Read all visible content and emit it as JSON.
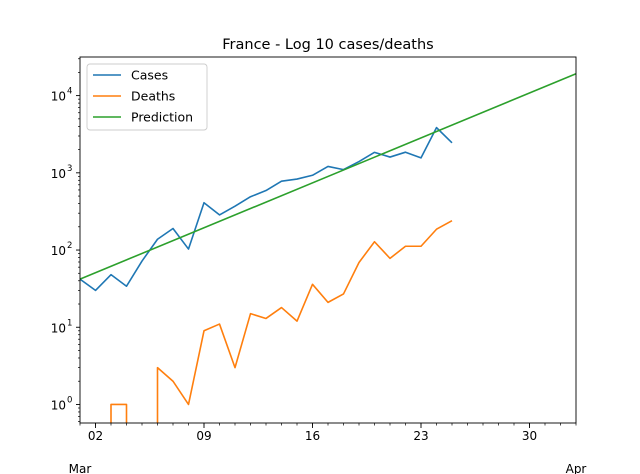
{
  "chart_data": {
    "type": "line",
    "title": "France - Log 10 cases/deaths",
    "yscale": "log10",
    "ylim_log10": [
      -0.24,
      4.5
    ],
    "xlim_day": [
      1,
      33
    ],
    "y_ticks": [
      {
        "base": "10",
        "exp": "0",
        "value": 1
      },
      {
        "base": "10",
        "exp": "1",
        "value": 10
      },
      {
        "base": "10",
        "exp": "2",
        "value": 100
      },
      {
        "base": "10",
        "exp": "3",
        "value": 1000
      },
      {
        "base": "10",
        "exp": "4",
        "value": 10000
      }
    ],
    "x_ticks": [
      {
        "label": "02",
        "day": 2
      },
      {
        "label": "09",
        "day": 9
      },
      {
        "label": "16",
        "day": 16
      },
      {
        "label": "23",
        "day": 23
      },
      {
        "label": "30",
        "day": 30
      }
    ],
    "x_month_labels": [
      {
        "label": "Mar",
        "day": 1
      },
      {
        "label": "Apr",
        "day": 33
      }
    ],
    "legend_position": "upper-left",
    "series": [
      {
        "name": "Cases",
        "color": "#1f77b4",
        "points": [
          [
            1,
            42
          ],
          [
            2,
            30
          ],
          [
            3,
            48
          ],
          [
            4,
            34
          ],
          [
            5,
            72
          ],
          [
            6,
            138
          ],
          [
            7,
            190
          ],
          [
            8,
            103
          ],
          [
            9,
            410
          ],
          [
            10,
            285
          ],
          [
            11,
            370
          ],
          [
            12,
            490
          ],
          [
            13,
            590
          ],
          [
            14,
            780
          ],
          [
            15,
            830
          ],
          [
            16,
            930
          ],
          [
            17,
            1210
          ],
          [
            18,
            1100
          ],
          [
            19,
            1400
          ],
          [
            20,
            1840
          ],
          [
            21,
            1600
          ],
          [
            22,
            1850
          ],
          [
            23,
            1560
          ],
          [
            24,
            3850
          ],
          [
            25,
            2450
          ]
        ]
      },
      {
        "name": "Deaths",
        "color": "#ff7f0e",
        "note": "zero-death days drop below the log axis",
        "points": [
          [
            3,
            0
          ],
          [
            3,
            1
          ],
          [
            4,
            1
          ],
          [
            4,
            0
          ],
          [
            6,
            0
          ],
          [
            6,
            3
          ],
          [
            7,
            2
          ],
          [
            8,
            1
          ],
          [
            9,
            9
          ],
          [
            10,
            11
          ],
          [
            11,
            3
          ],
          [
            12,
            15
          ],
          [
            13,
            13
          ],
          [
            14,
            18
          ],
          [
            15,
            12
          ],
          [
            16,
            36
          ],
          [
            17,
            21
          ],
          [
            18,
            27
          ],
          [
            19,
            69
          ],
          [
            20,
            128
          ],
          [
            21,
            78
          ],
          [
            22,
            112
          ],
          [
            23,
            112
          ],
          [
            24,
            186
          ],
          [
            25,
            240
          ]
        ]
      },
      {
        "name": "Prediction",
        "color": "#2ca02c",
        "points": [
          [
            1,
            42
          ],
          [
            33,
            19200
          ]
        ]
      }
    ]
  }
}
